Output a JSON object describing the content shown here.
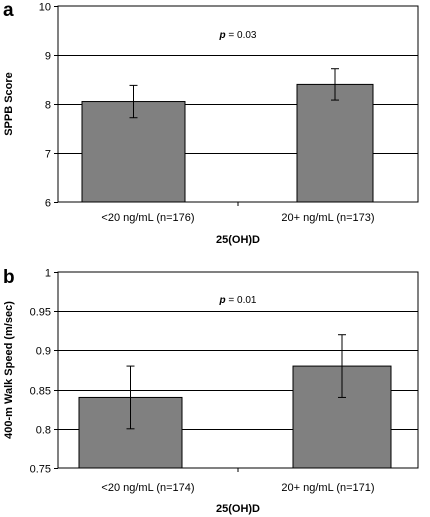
{
  "chart_data": [
    {
      "panel": "a",
      "type": "bar",
      "categories": [
        "<20 ng/mL (n=176)",
        "20+ ng/mL (n=173)"
      ],
      "values": [
        8.05,
        8.4
      ],
      "error": [
        0.33,
        0.32
      ],
      "xlabel": "25(OH)D",
      "ylabel": "SPPB Score",
      "ylim": [
        6,
        10
      ],
      "yticks": [
        "6",
        "7",
        "8",
        "9",
        "10"
      ],
      "grid": true,
      "annotation": {
        "p": "p",
        "rest": " = 0.03"
      },
      "bar_color": "#808080"
    },
    {
      "panel": "b",
      "type": "bar",
      "categories": [
        "<20 ng/mL (n=174)",
        "20+ ng/mL (n=171)"
      ],
      "values": [
        0.84,
        0.88
      ],
      "error": [
        0.04,
        0.04
      ],
      "xlabel": "25(OH)D",
      "ylabel": "400-m Walk Speed (m/sec)",
      "ylim": [
        0.75,
        1.0
      ],
      "yticks": [
        "0.75",
        "0.8",
        "0.85",
        "0.9",
        "0.95",
        "1"
      ],
      "grid": true,
      "annotation": {
        "p": "p",
        "rest": " = 0.01"
      },
      "bar_color": "#808080"
    }
  ]
}
